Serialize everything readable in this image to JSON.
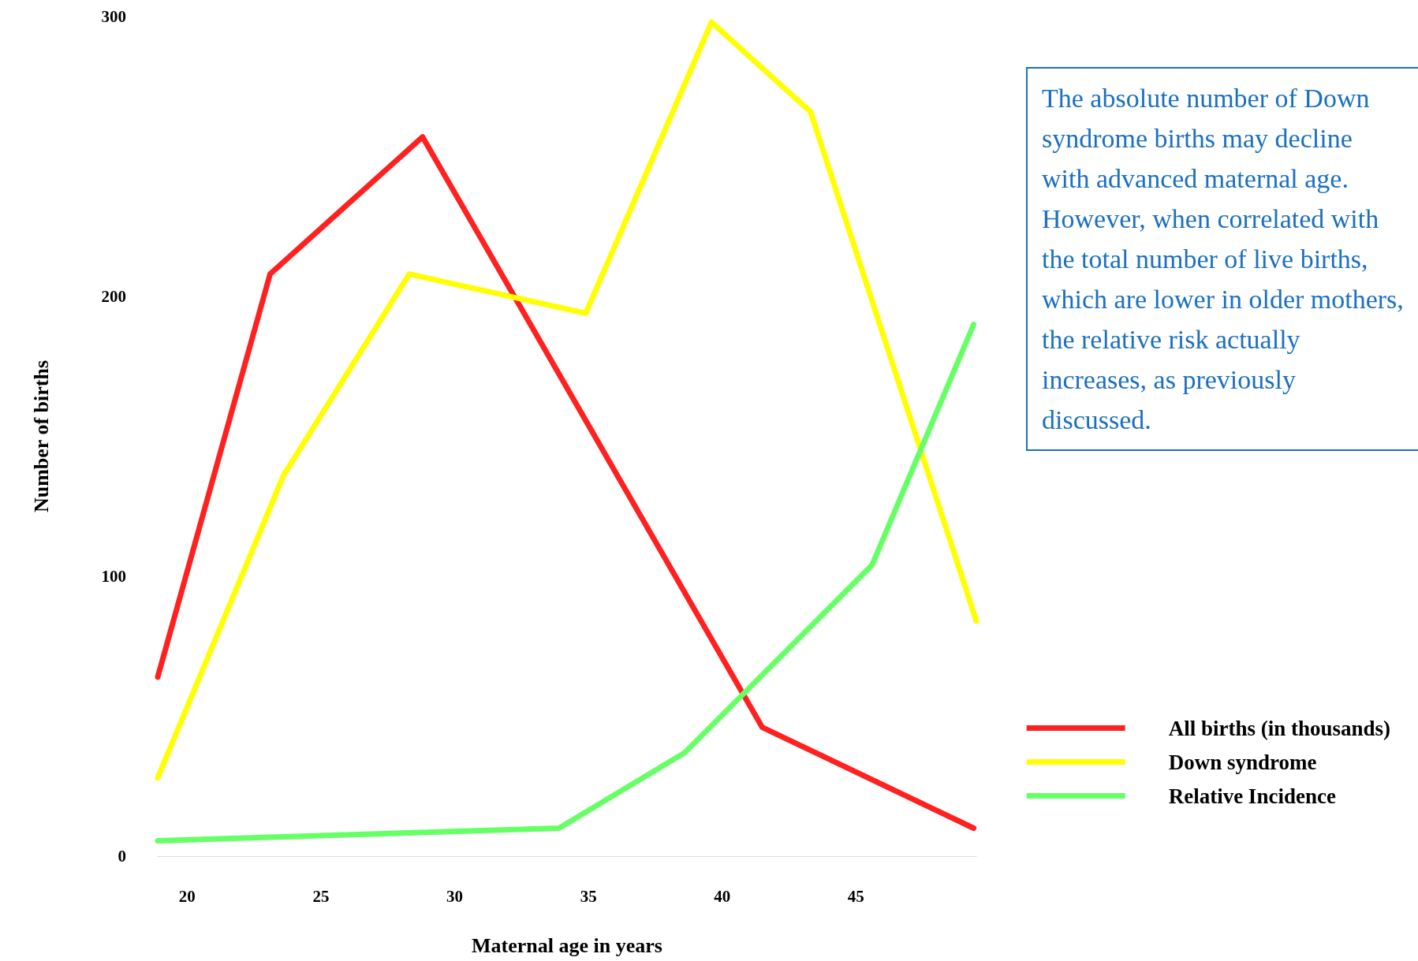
{
  "chart_data": {
    "type": "line",
    "xlabel": "Maternal age in years",
    "ylabel": "Number of births",
    "xlim": [
      18.9,
      49.5
    ],
    "xticks": [
      20,
      25,
      30,
      35,
      40,
      45
    ],
    "ylim": [
      0,
      300
    ],
    "yticks": [
      0,
      100,
      200,
      300
    ],
    "grid": false,
    "legend": "right",
    "marker": "none",
    "line_style": "solid",
    "series": [
      {
        "name": "All births (in thousands)",
        "color": "#ff2020",
        "x": [
          18.9,
          23.1,
          28.8,
          41.5,
          49.4
        ],
        "values": [
          64,
          208,
          257,
          46,
          10
        ]
      },
      {
        "name": "Down syndrome",
        "color": "#ffff00",
        "x": [
          18.9,
          23.6,
          28.3,
          34.9,
          39.6,
          43.3,
          49.5
        ],
        "values": [
          28,
          136,
          208,
          194,
          298,
          266,
          84
        ]
      },
      {
        "name": "Relative Incidence",
        "color": "#66ff66",
        "x": [
          18.9,
          33.9,
          38.6,
          45.6,
          49.4
        ],
        "values": [
          5.5,
          10,
          37,
          104,
          190
        ]
      }
    ],
    "annotations": [
      "The absolute number of Down syndrome births may decline with advanced maternal age. However, when correlated with the total number of live births, which are lower in older mothers, the relative risk actually increases, as previously discussed."
    ]
  }
}
